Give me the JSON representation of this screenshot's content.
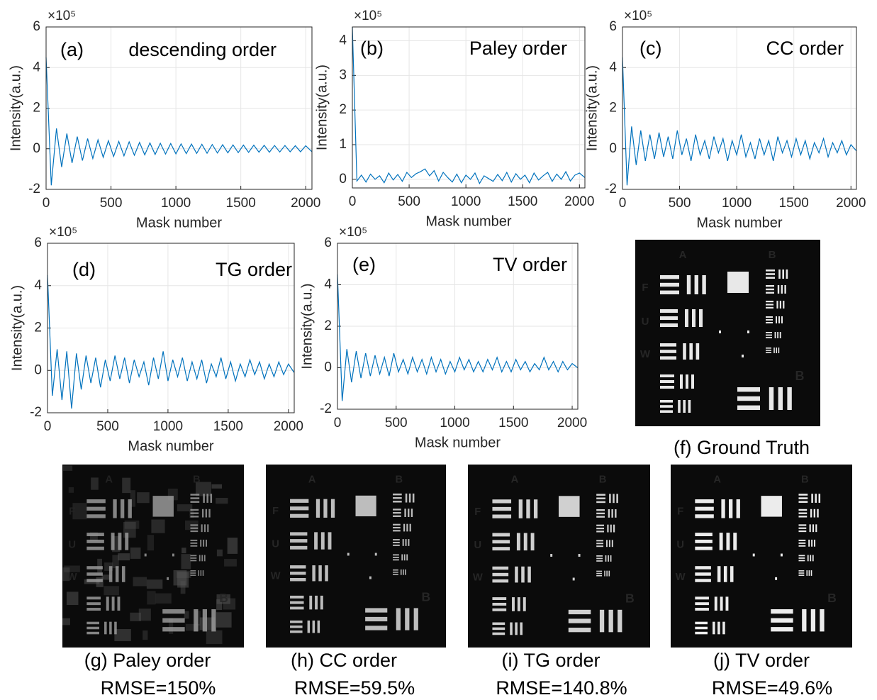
{
  "chart_data": [
    {
      "type": "line",
      "panel_label": "(a)",
      "title": "descending order",
      "xlabel": "Mask number",
      "ylabel": "Intensity(a.u.)",
      "y_multiplier": "×10⁵",
      "grid": true,
      "xlim": [
        0,
        2048
      ],
      "xticks": [
        0,
        500,
        1000,
        1500,
        2000
      ],
      "ylim": [
        -2,
        6
      ],
      "yticks": [
        -2,
        0,
        2,
        4,
        6
      ],
      "x": [
        0,
        40,
        80,
        120,
        160,
        200,
        240,
        280,
        320,
        360,
        400,
        440,
        480,
        520,
        560,
        600,
        640,
        680,
        720,
        760,
        800,
        840,
        880,
        920,
        960,
        1000,
        1040,
        1080,
        1120,
        1160,
        1200,
        1240,
        1280,
        1320,
        1360,
        1400,
        1440,
        1480,
        1520,
        1560,
        1600,
        1640,
        1680,
        1720,
        1760,
        1800,
        1840,
        1880,
        1920,
        1960,
        2000,
        2047
      ],
      "series": [
        {
          "color": "#0072bd",
          "values": [
            4.5,
            -1.8,
            1.0,
            -0.9,
            0.75,
            -0.7,
            0.6,
            -0.58,
            0.5,
            -0.48,
            0.44,
            -0.42,
            0.4,
            -0.38,
            0.36,
            -0.35,
            0.34,
            -0.32,
            0.31,
            -0.3,
            0.29,
            -0.28,
            0.27,
            -0.26,
            0.26,
            -0.25,
            0.24,
            -0.24,
            0.23,
            -0.23,
            0.22,
            -0.22,
            0.21,
            -0.21,
            0.2,
            -0.2,
            0.19,
            -0.19,
            0.18,
            -0.18,
            0.18,
            -0.17,
            0.17,
            -0.17,
            0.16,
            -0.16,
            0.16,
            -0.15,
            0.15,
            -0.15,
            0.15,
            -0.14
          ]
        }
      ]
    },
    {
      "type": "line",
      "panel_label": "(b)",
      "title": "Paley order",
      "xlabel": "Mask number",
      "ylabel": "Intensity(a.u.)",
      "y_multiplier": "×10⁵",
      "grid": true,
      "xlim": [
        0,
        2048
      ],
      "xticks": [
        0,
        500,
        1000,
        1500,
        2000
      ],
      "ylim": [
        -0.25,
        4.4
      ],
      "yticks": [
        0,
        1,
        2,
        3,
        4
      ],
      "x": [
        0,
        40,
        80,
        120,
        160,
        200,
        240,
        280,
        320,
        360,
        400,
        440,
        480,
        520,
        560,
        600,
        640,
        680,
        720,
        760,
        800,
        840,
        880,
        920,
        960,
        1000,
        1040,
        1080,
        1120,
        1160,
        1200,
        1240,
        1280,
        1320,
        1360,
        1400,
        1440,
        1480,
        1520,
        1560,
        1600,
        1640,
        1680,
        1720,
        1760,
        1800,
        1840,
        1880,
        1920,
        1960,
        2000,
        2047
      ],
      "series": [
        {
          "color": "#0072bd",
          "values": [
            4.4,
            -0.05,
            0.12,
            -0.08,
            0.15,
            0.0,
            0.1,
            -0.1,
            0.18,
            -0.02,
            0.14,
            -0.06,
            0.2,
            0.05,
            0.16,
            0.22,
            0.3,
            0.1,
            0.25,
            -0.05,
            0.2,
            0.05,
            -0.08,
            0.15,
            -0.1,
            0.12,
            0.0,
            0.18,
            -0.12,
            0.1,
            0.02,
            -0.06,
            0.14,
            -0.04,
            0.2,
            -0.08,
            0.16,
            0.0,
            0.12,
            -0.1,
            0.18,
            -0.02,
            0.1,
            0.2,
            -0.06,
            0.15,
            0.0,
            0.22,
            -0.05,
            0.12,
            0.18,
            0.05
          ]
        }
      ]
    },
    {
      "type": "line",
      "panel_label": "(c)",
      "title": "CC order",
      "xlabel": "Mask number",
      "ylabel": "Intensity(a.u.)",
      "y_multiplier": "×10⁵",
      "grid": true,
      "xlim": [
        0,
        2048
      ],
      "xticks": [
        0,
        500,
        1000,
        1500,
        2000
      ],
      "ylim": [
        -2,
        6
      ],
      "yticks": [
        -2,
        0,
        2,
        4,
        6
      ],
      "x": [
        0,
        40,
        80,
        120,
        160,
        200,
        240,
        280,
        320,
        360,
        400,
        440,
        480,
        520,
        560,
        600,
        640,
        680,
        720,
        760,
        800,
        840,
        880,
        920,
        960,
        1000,
        1040,
        1080,
        1120,
        1160,
        1200,
        1240,
        1280,
        1320,
        1360,
        1400,
        1440,
        1480,
        1520,
        1560,
        1600,
        1640,
        1680,
        1720,
        1760,
        1800,
        1840,
        1880,
        1920,
        1960,
        2000,
        2047
      ],
      "series": [
        {
          "color": "#0072bd",
          "values": [
            4.5,
            -1.8,
            1.1,
            -0.8,
            0.9,
            -0.6,
            0.7,
            -0.5,
            0.8,
            -0.4,
            0.6,
            -0.5,
            0.9,
            -0.3,
            0.5,
            -0.6,
            0.7,
            -0.3,
            0.4,
            -0.5,
            0.6,
            -0.2,
            0.5,
            -0.6,
            0.4,
            -0.3,
            0.7,
            -0.4,
            0.3,
            -0.5,
            0.5,
            -0.3,
            0.4,
            -0.6,
            0.6,
            -0.2,
            0.4,
            -0.4,
            0.5,
            -0.3,
            0.4,
            -0.5,
            0.3,
            -0.2,
            0.5,
            -0.4,
            0.3,
            -0.2,
            0.4,
            -0.3,
            0.2,
            -0.1
          ]
        }
      ]
    },
    {
      "type": "line",
      "panel_label": "(d)",
      "title": "TG order",
      "xlabel": "Mask number",
      "ylabel": "Intensity(a.u.)",
      "y_multiplier": "×10⁵",
      "grid": true,
      "xlim": [
        0,
        2048
      ],
      "xticks": [
        0,
        500,
        1000,
        1500,
        2000
      ],
      "ylim": [
        -2,
        6
      ],
      "yticks": [
        -2,
        0,
        2,
        4,
        6
      ],
      "x": [
        0,
        40,
        80,
        120,
        160,
        200,
        240,
        280,
        320,
        360,
        400,
        440,
        480,
        520,
        560,
        600,
        640,
        680,
        720,
        760,
        800,
        840,
        880,
        920,
        960,
        1000,
        1040,
        1080,
        1120,
        1160,
        1200,
        1240,
        1280,
        1320,
        1360,
        1400,
        1440,
        1480,
        1520,
        1560,
        1600,
        1640,
        1680,
        1720,
        1760,
        1800,
        1840,
        1880,
        1920,
        1960,
        2000,
        2047
      ],
      "series": [
        {
          "color": "#0072bd",
          "values": [
            4.5,
            -1.2,
            1.0,
            -1.4,
            0.9,
            -1.8,
            0.8,
            -0.9,
            0.7,
            -0.6,
            0.6,
            -0.8,
            0.5,
            -0.5,
            0.7,
            -0.4,
            0.6,
            -0.6,
            0.5,
            -0.3,
            0.4,
            -0.7,
            0.6,
            -0.4,
            0.9,
            -0.5,
            0.5,
            -0.3,
            0.6,
            -0.5,
            0.4,
            -0.4,
            0.5,
            -0.6,
            0.3,
            -0.3,
            0.6,
            -0.4,
            0.4,
            -0.5,
            0.3,
            -0.3,
            0.5,
            -0.2,
            0.4,
            -0.4,
            0.3,
            -0.3,
            0.4,
            -0.2,
            0.3,
            -0.1
          ]
        }
      ]
    },
    {
      "type": "line",
      "panel_label": "(e)",
      "title": "TV order",
      "xlabel": "Mask number",
      "ylabel": "Intensity(a.u.)",
      "y_multiplier": "×10⁵",
      "grid": true,
      "xlim": [
        0,
        2048
      ],
      "xticks": [
        0,
        500,
        1000,
        1500,
        2000
      ],
      "ylim": [
        -2,
        6
      ],
      "yticks": [
        -2,
        0,
        2,
        4,
        6
      ],
      "x": [
        0,
        40,
        80,
        120,
        160,
        200,
        240,
        280,
        320,
        360,
        400,
        440,
        480,
        520,
        560,
        600,
        640,
        680,
        720,
        760,
        800,
        840,
        880,
        920,
        960,
        1000,
        1040,
        1080,
        1120,
        1160,
        1200,
        1240,
        1280,
        1320,
        1360,
        1400,
        1440,
        1480,
        1520,
        1560,
        1600,
        1640,
        1680,
        1720,
        1760,
        1800,
        1840,
        1880,
        1920,
        1960,
        2000,
        2047
      ],
      "series": [
        {
          "color": "#0072bd",
          "values": [
            4.5,
            -1.6,
            0.9,
            -0.7,
            0.8,
            -0.5,
            0.7,
            -0.4,
            0.6,
            -0.3,
            0.5,
            -0.4,
            0.7,
            -0.2,
            0.4,
            -0.3,
            0.5,
            -0.2,
            0.4,
            -0.3,
            0.5,
            -0.2,
            0.4,
            -0.3,
            0.3,
            -0.2,
            0.5,
            -0.1,
            0.4,
            -0.2,
            0.3,
            -0.2,
            0.4,
            -0.1,
            0.5,
            -0.2,
            0.3,
            -0.2,
            0.4,
            -0.1,
            0.3,
            -0.2,
            0.2,
            -0.1,
            0.5,
            -0.1,
            0.3,
            -0.2,
            0.3,
            -0.1,
            0.2,
            0.0
          ]
        }
      ]
    }
  ],
  "target_letters": [
    "A",
    "B",
    "F",
    "U",
    "W",
    "B"
  ],
  "images": [
    {
      "caption": "(f) Ground Truth"
    },
    {
      "caption": "(g) Paley order",
      "rmse": "RMSE=150%"
    },
    {
      "caption": "(h) CC order",
      "rmse": "RMSE=59.5%"
    },
    {
      "caption": "(i) TG order",
      "rmse": "RMSE=140.8%"
    },
    {
      "caption": "(j) TV order",
      "rmse": "RMSE=49.6%"
    }
  ]
}
